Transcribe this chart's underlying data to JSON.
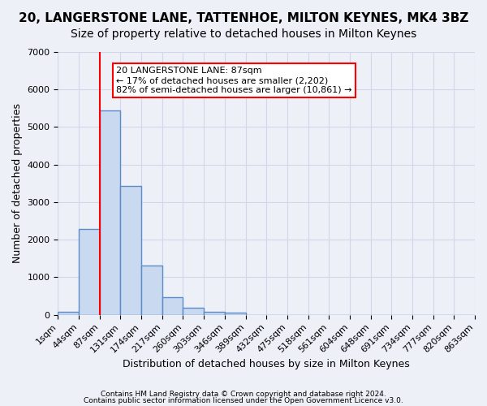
{
  "title": "20, LANGERSTONE LANE, TATTENHOE, MILTON KEYNES, MK4 3BZ",
  "subtitle": "Size of property relative to detached houses in Milton Keynes",
  "xlabel": "Distribution of detached houses by size in Milton Keynes",
  "ylabel": "Number of detached properties",
  "bar_values": [
    75,
    2280,
    5450,
    3430,
    1310,
    460,
    185,
    90,
    55,
    0,
    0,
    0,
    0,
    0,
    0,
    0,
    0,
    0,
    0,
    0
  ],
  "bar_labels": [
    "1sqm",
    "44sqm",
    "87sqm",
    "131sqm",
    "174sqm",
    "217sqm",
    "260sqm",
    "303sqm",
    "346sqm",
    "389sqm",
    "432sqm",
    "475sqm",
    "518sqm",
    "561sqm",
    "604sqm",
    "648sqm",
    "691sqm",
    "734sqm",
    "777sqm",
    "820sqm",
    "863sqm"
  ],
  "bar_color": "#c9d9f0",
  "bar_edge_color": "#5b8cc8",
  "bar_edge_width": 1.0,
  "red_line_x": 2,
  "annotation_text": "20 LANGERSTONE LANE: 87sqm\n← 17% of detached houses are smaller (2,202)\n82% of semi-detached houses are larger (10,861) →",
  "annotation_box_color": "white",
  "annotation_box_edge_color": "red",
  "ylim": [
    0,
    7000
  ],
  "yticks": [
    0,
    1000,
    2000,
    3000,
    4000,
    5000,
    6000,
    7000
  ],
  "grid_color": "#d0d8e8",
  "background_color": "#eef0f8",
  "footer_line1": "Contains HM Land Registry data © Crown copyright and database right 2024.",
  "footer_line2": "Contains public sector information licensed under the Open Government Licence v3.0.",
  "title_fontsize": 11,
  "subtitle_fontsize": 10,
  "axis_label_fontsize": 9,
  "tick_fontsize": 8
}
